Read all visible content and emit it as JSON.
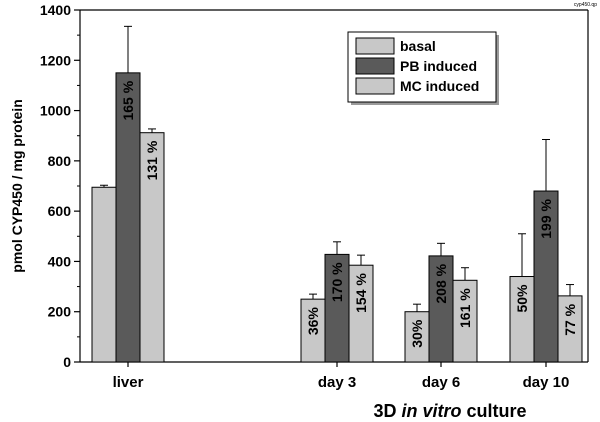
{
  "chart_data": {
    "type": "bar",
    "categories": [
      "liver",
      "day 3",
      "day 6",
      "day 10"
    ],
    "ylabel": "pmol CYP450 / mg protein",
    "xlabel_parts": [
      "3D ",
      "in vitro",
      " culture"
    ],
    "file_tag": "cyp450.qp",
    "ylim": [
      0,
      1400
    ],
    "yticks": [
      0,
      200,
      400,
      600,
      800,
      1000,
      1200,
      1400
    ],
    "legend_position": "top-right",
    "grid": false,
    "series": [
      {
        "name": "basal",
        "color": "#c8c8c8",
        "values": [
          695,
          250,
          200,
          340
        ],
        "errors": [
          8,
          20,
          30,
          170
        ],
        "labels": [
          "",
          "36%",
          "30%",
          "50%"
        ]
      },
      {
        "name": "PB induced",
        "color": "#5a5a5a",
        "values": [
          1150,
          428,
          422,
          680
        ],
        "errors": [
          185,
          50,
          50,
          205
        ],
        "labels": [
          "165 %",
          "170 %",
          "208 %",
          "199 %"
        ]
      },
      {
        "name": "MC induced",
        "color": "#c8c8c8",
        "values": [
          912,
          385,
          325,
          263
        ],
        "errors": [
          15,
          40,
          50,
          45
        ],
        "labels": [
          "131 %",
          "154 %",
          "161 %",
          "77 %"
        ]
      }
    ]
  }
}
